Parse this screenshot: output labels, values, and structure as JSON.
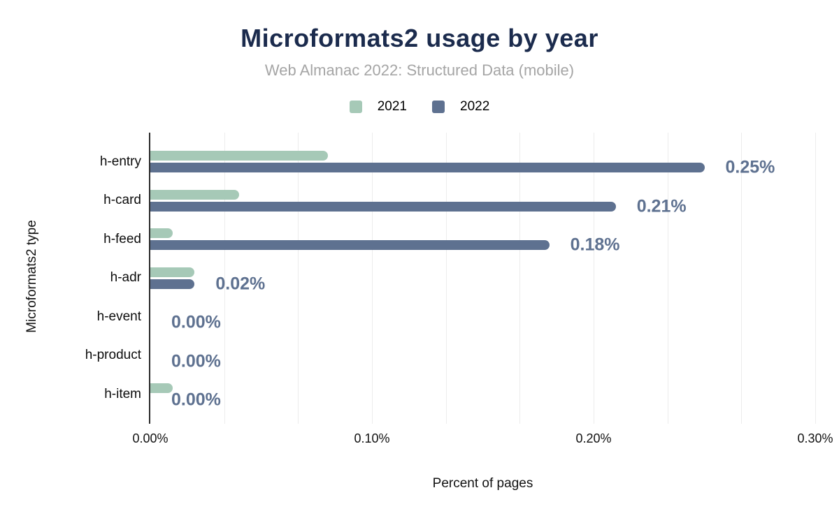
{
  "title": "Microformats2 usage by year",
  "subtitle": "Web Almanac 2022: Structured Data (mobile)",
  "legend": [
    {
      "label": "2021",
      "color": "#a6c9b7"
    },
    {
      "label": "2022",
      "color": "#5e7190"
    }
  ],
  "colors": {
    "title": "#1b2b4d",
    "subtitle": "#a5a5a5",
    "series_2021": "#a6c9b7",
    "series_2022": "#5e7190",
    "value_label": "#5e7190",
    "axis_line": "#2b2b2b",
    "gridline": "#ececec"
  },
  "chart_data": {
    "type": "bar",
    "orientation": "horizontal",
    "title": "Microformats2 usage by year",
    "subtitle": "Web Almanac 2022: Structured Data (mobile)",
    "categories": [
      "h-entry",
      "h-card",
      "h-feed",
      "h-adr",
      "h-event",
      "h-product",
      "h-item"
    ],
    "series": [
      {
        "name": "2021",
        "color": "#a6c9b7",
        "values": [
          0.08,
          0.04,
          0.01,
          0.02,
          0.0,
          0.0,
          0.01
        ]
      },
      {
        "name": "2022",
        "color": "#5e7190",
        "values": [
          0.25,
          0.21,
          0.18,
          0.02,
          0.0,
          0.0,
          0.0
        ]
      }
    ],
    "value_labels": [
      "0.25%",
      "0.21%",
      "0.18%",
      "0.02%",
      "0.00%",
      "0.00%",
      "0.00%"
    ],
    "value_labels_series": "2022",
    "xlabel": "Percent of pages",
    "ylabel": "Microformats2 type",
    "xlim": [
      0,
      0.3
    ],
    "x_ticks": [
      {
        "value": 0.0,
        "label": "0.00%"
      },
      {
        "value": 0.1,
        "label": "0.10%"
      },
      {
        "value": 0.2,
        "label": "0.20%"
      },
      {
        "value": 0.3,
        "label": "0.30%"
      }
    ],
    "n_grid_intervals": 9,
    "grid": true,
    "legend_position": "top"
  }
}
